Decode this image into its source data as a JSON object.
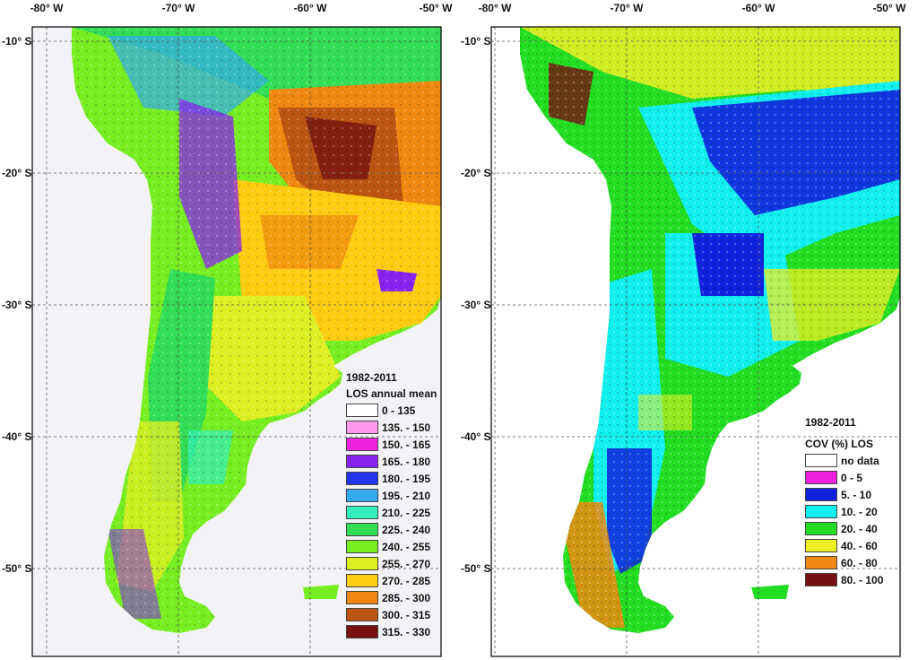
{
  "axes": {
    "lon_labels": [
      "-80° W",
      "-70° W",
      "-60° W",
      "-50° W"
    ],
    "lat_labels": [
      "-10° S",
      "-20° S",
      "-30° S",
      "-40° S",
      "-50° S"
    ]
  },
  "maps": [
    {
      "period": "1982-2011",
      "legend_title": "LOS annual mean",
      "classes": [
        {
          "label": "0 - 135",
          "color": "#ffffff"
        },
        {
          "label": "135. - 150",
          "color": "#ff99ee"
        },
        {
          "label": "150. - 165",
          "color": "#ee22dd"
        },
        {
          "label": "165. - 180",
          "color": "#8822ee"
        },
        {
          "label": "180. - 195",
          "color": "#2233ee"
        },
        {
          "label": "195. - 210",
          "color": "#33aaee"
        },
        {
          "label": "210. - 225",
          "color": "#33eebb"
        },
        {
          "label": "225. - 240",
          "color": "#33dd55"
        },
        {
          "label": "240. - 255",
          "color": "#77ee22"
        },
        {
          "label": "255. - 270",
          "color": "#ddee22"
        },
        {
          "label": "270. - 285",
          "color": "#ffcc11"
        },
        {
          "label": "285. - 300",
          "color": "#ee8811"
        },
        {
          "label": "300. - 315",
          "color": "#bb5511"
        },
        {
          "label": "315. - 330",
          "color": "#771111"
        }
      ]
    },
    {
      "period": "1982-2011",
      "legend_title": "COV (%) LOS",
      "classes": [
        {
          "label": "no data",
          "color": "#ffffff"
        },
        {
          "label": "0 - 5",
          "color": "#ee22dd"
        },
        {
          "label": "5. - 10",
          "color": "#1122dd"
        },
        {
          "label": "10. - 20",
          "color": "#11eeee"
        },
        {
          "label": "20. - 40",
          "color": "#22dd22"
        },
        {
          "label": "40. - 60",
          "color": "#eeee22"
        },
        {
          "label": "60. - 80",
          "color": "#ee8811"
        },
        {
          "label": "80. - 100",
          "color": "#771111"
        }
      ]
    }
  ]
}
